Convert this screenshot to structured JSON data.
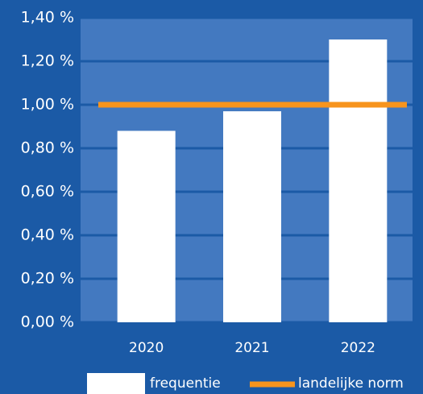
{
  "chart_data": {
    "type": "bar",
    "categories": [
      "2020",
      "2021",
      "2022"
    ],
    "series": [
      {
        "name": "frequentie",
        "color": "#ffffff",
        "values": [
          0.88,
          0.97,
          1.3
        ]
      },
      {
        "name": "landelijke norm",
        "color": "#f7941d",
        "type": "line",
        "values": [
          1.0,
          1.0,
          1.0
        ]
      }
    ],
    "ylim": [
      0,
      1.4
    ],
    "yticks": [
      {
        "value": 0,
        "label": "0,00 %"
      },
      {
        "value": 0.2,
        "label": "0,20 %"
      },
      {
        "value": 0.4,
        "label": "0,40 %"
      },
      {
        "value": 0.6,
        "label": "0,60 %"
      },
      {
        "value": 0.8,
        "label": "0,80 %"
      },
      {
        "value": 1.0,
        "label": "1,00 %"
      },
      {
        "value": 1.2,
        "label": "1,20 %"
      },
      {
        "value": 1.4,
        "label": "1,40 %"
      }
    ],
    "grid": true,
    "legend": "bottom"
  }
}
